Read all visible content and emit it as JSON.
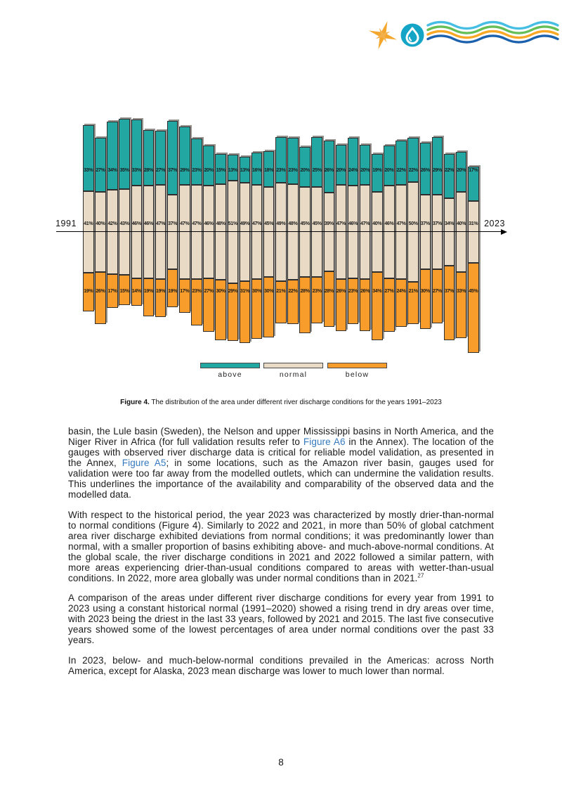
{
  "header": {
    "logo": {
      "icons": [
        "compass-star-icon",
        "water-drop-icon",
        "waves-icon"
      ],
      "colors": {
        "star_main": "#F5A62D",
        "star_sub": "#F2B04A",
        "drop_circle": "#14A4C5",
        "drop_outline": "#FFFFFF",
        "wave_1": "#46BEE3",
        "wave_2": "#66BE57",
        "wave_3": "#F9A825",
        "wave_4": "#1B60AC"
      }
    }
  },
  "chart": {
    "chart_data": {
      "type": "bar",
      "stacked": true,
      "orientation": "vertical",
      "title": "",
      "categories": [
        1991,
        1992,
        1993,
        1994,
        1995,
        1996,
        1997,
        1998,
        1999,
        2000,
        2001,
        2002,
        2003,
        2004,
        2005,
        2006,
        2007,
        2008,
        2009,
        2010,
        2011,
        2012,
        2013,
        2014,
        2015,
        2016,
        2017,
        2018,
        2019,
        2020,
        2021,
        2022,
        2023
      ],
      "series": [
        {
          "name": "above",
          "color": "#23A7A3",
          "values": [
            33,
            27,
            34,
            35,
            33,
            28,
            27,
            37,
            29,
            23,
            20,
            15,
            13,
            13,
            16,
            18,
            23,
            23,
            20,
            25,
            26,
            20,
            24,
            20,
            19,
            20,
            22,
            22,
            26,
            29,
            22,
            20,
            17
          ]
        },
        {
          "name": "normal",
          "color": "#E8DAC5",
          "values": [
            41,
            40,
            42,
            43,
            46,
            46,
            47,
            37,
            47,
            47,
            46,
            48,
            51,
            49,
            47,
            45,
            49,
            48,
            45,
            45,
            39,
            47,
            46,
            47,
            40,
            46,
            47,
            50,
            37,
            37,
            34,
            40,
            31
          ]
        },
        {
          "name": "below",
          "color": "#F89D2B",
          "values": [
            19,
            26,
            17,
            15,
            14,
            19,
            19,
            19,
            17,
            23,
            27,
            30,
            29,
            31,
            30,
            30,
            21,
            22,
            28,
            23,
            28,
            26,
            23,
            26,
            34,
            27,
            24,
            21,
            30,
            27,
            37,
            33,
            45
          ]
        }
      ],
      "value_label_suffix": "%",
      "x_axis": {
        "start_label": "1991",
        "end_label": "2023"
      },
      "legend": [
        "above",
        "normal",
        "below"
      ],
      "legend_position": "bottom",
      "layout_note": "normal band centered on horizontal year axis; above stacked upward, below stacked downward"
    }
  },
  "figure_caption": {
    "label": "Figure 4.",
    "text": " The distribution of the area under different river discharge conditions for the years 1991–2023"
  },
  "body": {
    "link_color": "#3579BE",
    "paragraphs": [
      {
        "segments": [
          {
            "text": "basin, the Lule basin (Sweden), the Nelson and upper Mississippi basins in North America, and the Niger River in Africa (for full validation results refer to "
          },
          {
            "text": "Figure A6",
            "link": true,
            "name": "figure-a6-link"
          },
          {
            "text": " in the Annex). The location of the gauges with observed river discharge data is critical for reliable model validation, as presented in the Annex, "
          },
          {
            "text": "Figure A5",
            "link": true,
            "name": "figure-a5-link"
          },
          {
            "text": "; in some locations, such as the Amazon river basin, gauges used for validation were too far away from the modelled outlets, which can undermine the validation results. This underlines the importance of the availability and comparability of the observed data and the modelled data."
          }
        ]
      },
      {
        "segments": [
          {
            "text": "With respect to the historical period, the year 2023 was characterized by mostly drier-than-normal to normal conditions (Figure 4). Similarly to 2022 and 2021, in more than 50% of global catchment area river discharge exhibited deviations from normal conditions; it was predominantly lower than normal, with a smaller proportion of basins exhibiting above- and much-above-normal conditions. At the global scale, the river discharge conditions in 2021 and 2022 followed a similar pattern, with more areas experiencing drier-than-usual conditions compared to areas with wetter-than-usual conditions. In 2022, more area globally was under normal conditions than in 2021."
          },
          {
            "text": "27",
            "sup": true
          }
        ]
      },
      {
        "segments": [
          {
            "text": "A comparison of the areas under different river discharge conditions for every year from 1991 to 2023 using a constant historical normal (1991–2020) showed a rising trend in dry areas over time, with 2023 being the driest in the last 33 years, followed by 2021 and 2015. The last five consecutive years showed some of the lowest percentages of area under normal conditions over the past 33 years."
          }
        ]
      },
      {
        "segments": [
          {
            "text": "In 2023, below- and much-below-normal conditions prevailed in the Americas: across North America, except for Alaska, 2023 mean discharge was lower to much lower than normal."
          }
        ]
      }
    ]
  },
  "footer": {
    "page_number": "8"
  }
}
